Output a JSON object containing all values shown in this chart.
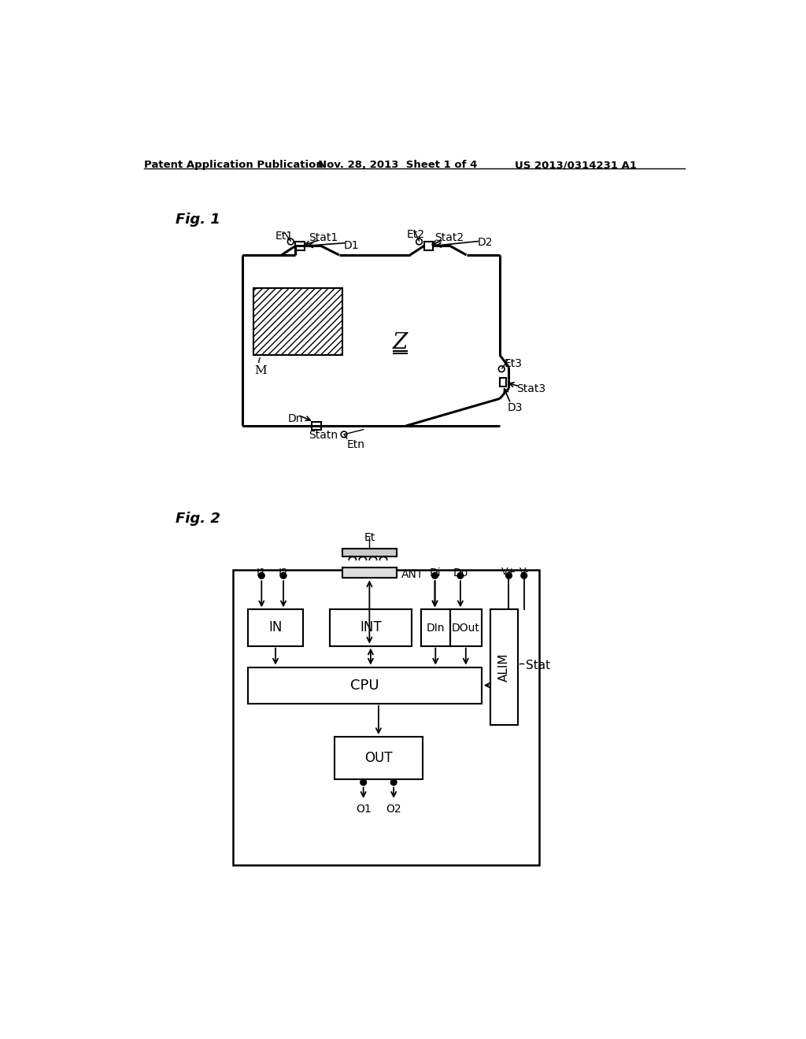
{
  "header_left": "Patent Application Publication",
  "header_mid": "Nov. 28, 2013  Sheet 1 of 4",
  "header_right": "US 2013/0314231 A1",
  "fig1_label": "Fig. 1",
  "fig2_label": "Fig. 2",
  "bg_color": "#ffffff",
  "line_color": "#000000"
}
